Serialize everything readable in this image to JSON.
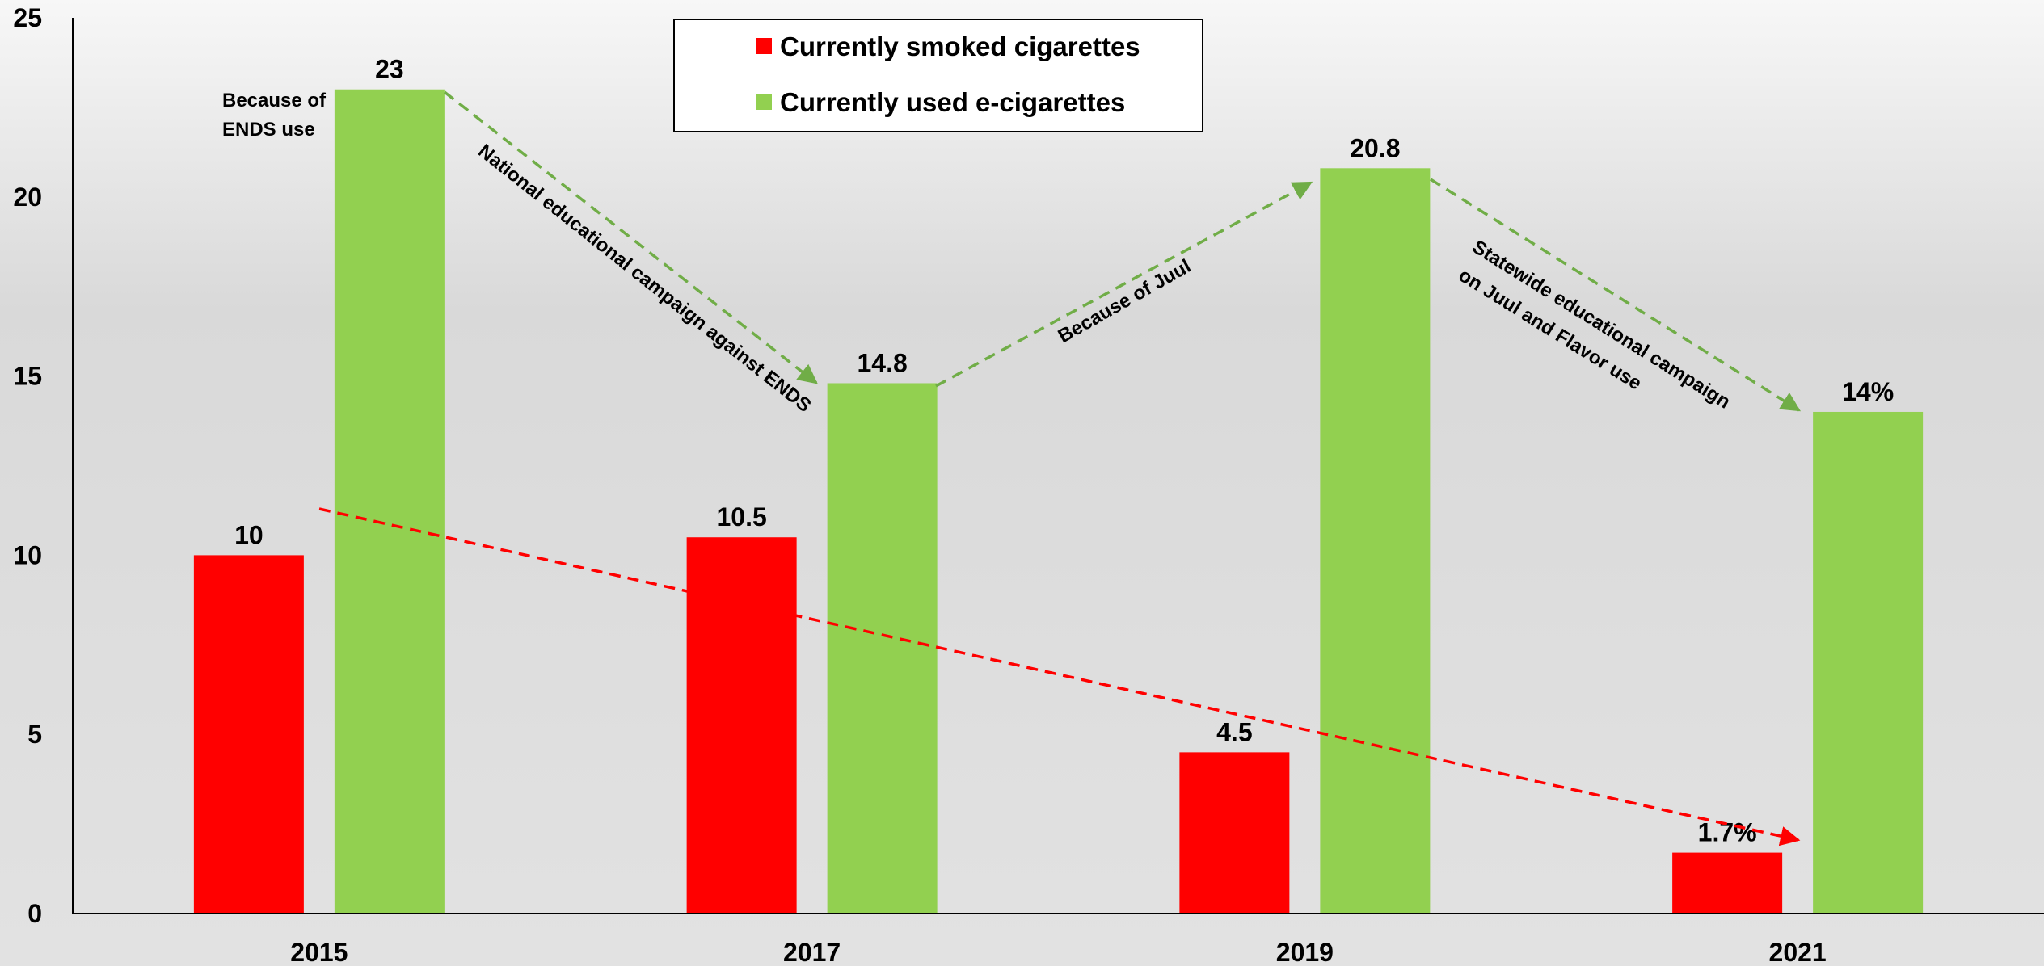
{
  "chart_data": {
    "type": "bar",
    "categories": [
      "2015",
      "2017",
      "2019",
      "2021"
    ],
    "series": [
      {
        "name": "Currently smoked cigarettes",
        "color": "#ff0000",
        "values": [
          10,
          10.5,
          4.5,
          1.7
        ],
        "labels": [
          "10",
          "10.5",
          "4.5",
          "1.7%"
        ]
      },
      {
        "name": "Currently used e-cigarettes",
        "color": "#92d050",
        "values": [
          23,
          14.8,
          20.8,
          14
        ],
        "labels": [
          "23",
          "14.8",
          "20.8",
          "14%"
        ]
      }
    ],
    "ylim": [
      0,
      25
    ],
    "yticks": [
      0,
      5,
      10,
      15,
      20,
      25
    ],
    "legend_position": "top-center",
    "annotations": {
      "ends_use": [
        "Because of",
        "ENDS use"
      ],
      "national_campaign": "National educational campaign against ENDS",
      "juul": "Because of Juul",
      "statewide_campaign": [
        "Statewide educational campaign",
        "on  Juul and Flavor use"
      ]
    },
    "colors": {
      "trend_red": "#ff0000",
      "trend_green": "#70ad47"
    }
  }
}
